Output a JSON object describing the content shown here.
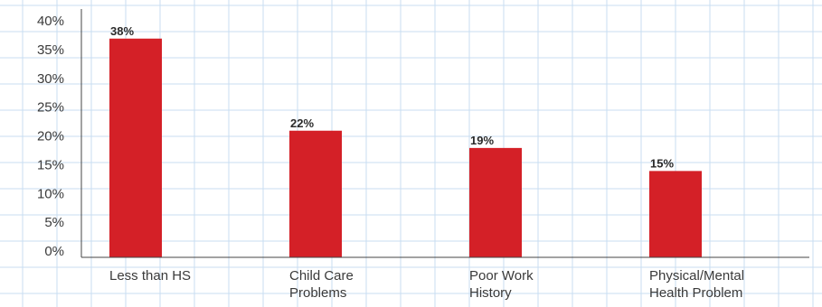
{
  "chart_data": {
    "type": "bar",
    "categories": [
      [
        "Less than HS"
      ],
      [
        "Child Care",
        "Problems"
      ],
      [
        "Poor Work",
        "History"
      ],
      [
        "Physical/Mental",
        "Health Problem"
      ]
    ],
    "values": [
      38,
      22,
      19,
      15
    ],
    "data_labels": [
      "38%",
      "22%",
      "19%",
      "15%"
    ],
    "y_ticks": [
      "0%",
      "5%",
      "10%",
      "15%",
      "20%",
      "25%",
      "30%",
      "35%",
      "40%"
    ],
    "ylim": [
      0,
      40
    ],
    "grid": true,
    "colors": {
      "bar": "#D42027",
      "grid": "#C9DDF2",
      "axis": "#444444",
      "text": "#3a3a3a"
    }
  }
}
